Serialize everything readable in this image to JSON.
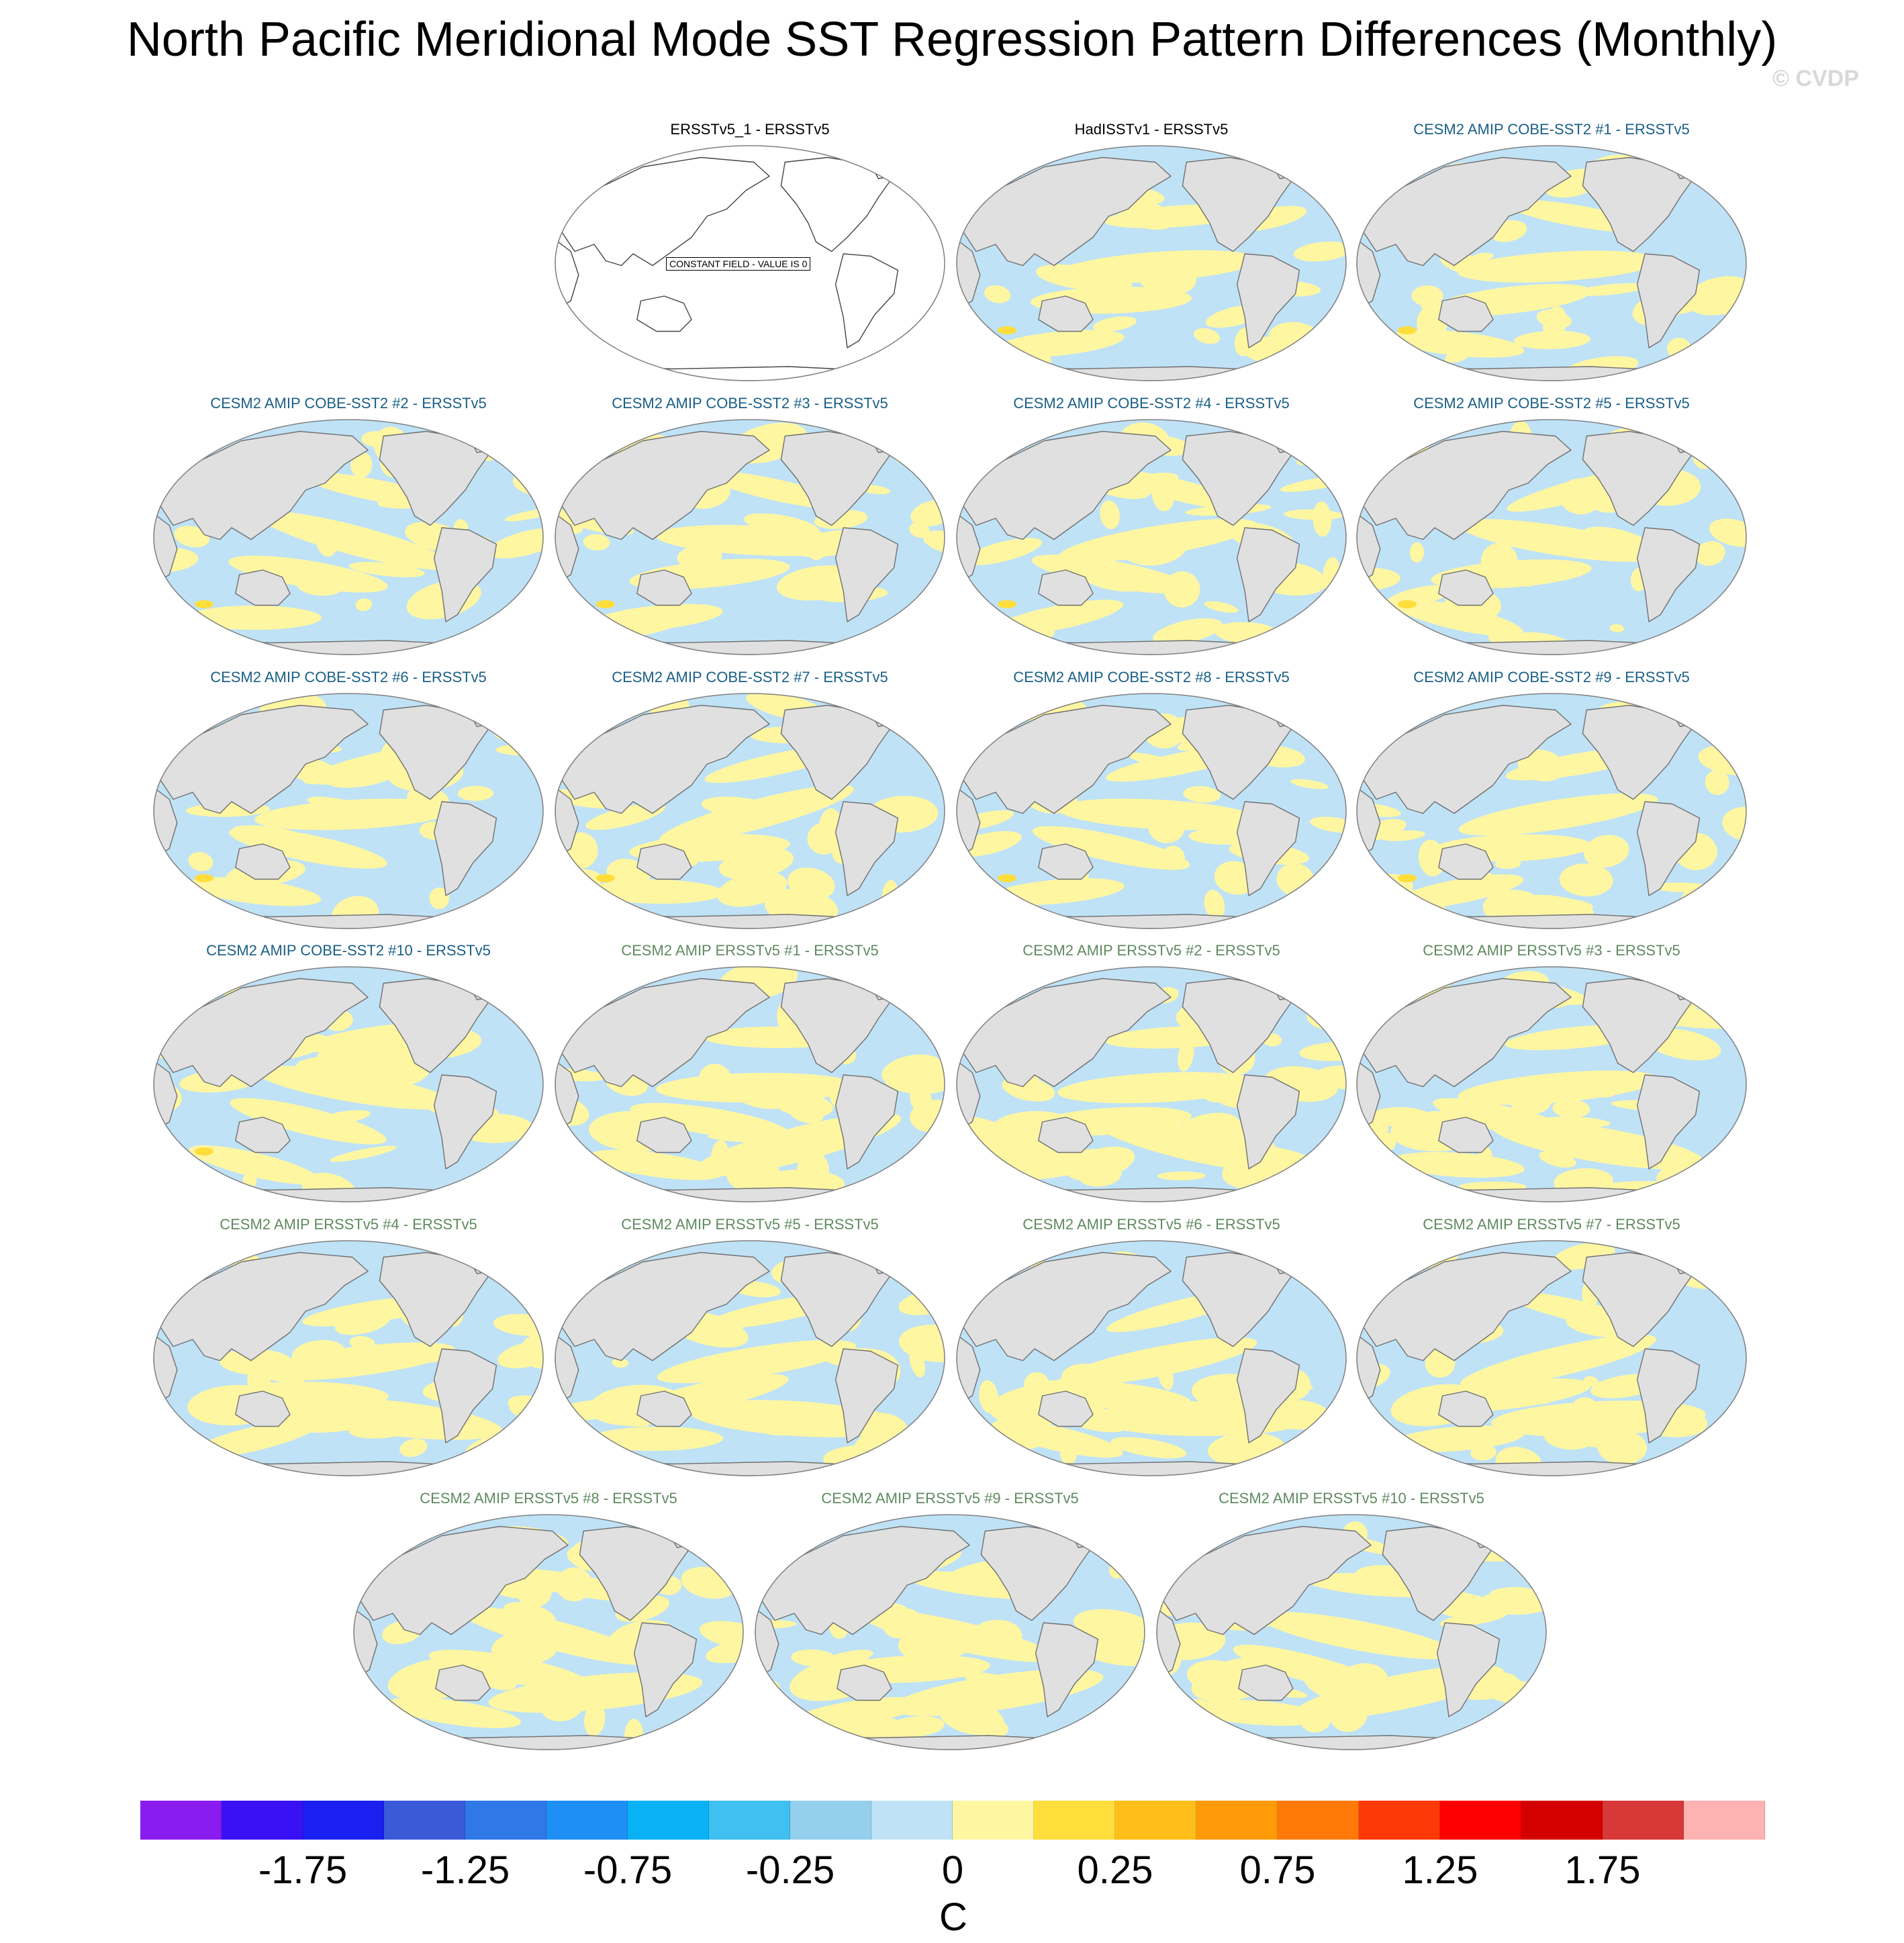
{
  "title": "North Pacific Meridional Mode SST Regression Pattern Differences (Monthly)",
  "watermark": "© CVDP",
  "panels": [
    {
      "label": "ERSSTv5_1 - ERSSTv5",
      "color": "#000000",
      "kind": "constant",
      "note": "CONSTANT FIELD - VALUE IS 0"
    },
    {
      "label": "HadISSTv1 - ERSSTv5",
      "color": "#000000",
      "kind": "hadisst"
    },
    {
      "label": "CESM2 AMIP COBE-SST2 #1 - ERSSTv5",
      "color": "#1a5f86",
      "kind": "cobe"
    },
    {
      "label": "CESM2 AMIP COBE-SST2 #2 - ERSSTv5",
      "color": "#1a5f86",
      "kind": "cobe"
    },
    {
      "label": "CESM2 AMIP COBE-SST2 #3 - ERSSTv5",
      "color": "#1a5f86",
      "kind": "cobe"
    },
    {
      "label": "CESM2 AMIP COBE-SST2 #4 - ERSSTv5",
      "color": "#1a5f86",
      "kind": "cobe"
    },
    {
      "label": "CESM2 AMIP COBE-SST2 #5 - ERSSTv5",
      "color": "#1a5f86",
      "kind": "cobe"
    },
    {
      "label": "CESM2 AMIP COBE-SST2 #6 - ERSSTv5",
      "color": "#1a5f86",
      "kind": "cobe"
    },
    {
      "label": "CESM2 AMIP COBE-SST2 #7 - ERSSTv5",
      "color": "#1a5f86",
      "kind": "cobe"
    },
    {
      "label": "CESM2 AMIP COBE-SST2 #8 - ERSSTv5",
      "color": "#1a5f86",
      "kind": "cobe"
    },
    {
      "label": "CESM2 AMIP COBE-SST2 #9 - ERSSTv5",
      "color": "#1a5f86",
      "kind": "cobe"
    },
    {
      "label": "CESM2 AMIP COBE-SST2 #10 - ERSSTv5",
      "color": "#1a5f86",
      "kind": "cobe"
    },
    {
      "label": "CESM2 AMIP ERSSTv5 #1 - ERSSTv5",
      "color": "#5f8a5f",
      "kind": "ersst"
    },
    {
      "label": "CESM2 AMIP ERSSTv5 #2 - ERSSTv5",
      "color": "#5f8a5f",
      "kind": "ersst"
    },
    {
      "label": "CESM2 AMIP ERSSTv5 #3 - ERSSTv5",
      "color": "#5f8a5f",
      "kind": "ersst"
    },
    {
      "label": "CESM2 AMIP ERSSTv5 #4 - ERSSTv5",
      "color": "#5f8a5f",
      "kind": "ersst"
    },
    {
      "label": "CESM2 AMIP ERSSTv5 #5 - ERSSTv5",
      "color": "#5f8a5f",
      "kind": "ersst"
    },
    {
      "label": "CESM2 AMIP ERSSTv5 #6 - ERSSTv5",
      "color": "#5f8a5f",
      "kind": "ersst"
    },
    {
      "label": "CESM2 AMIP ERSSTv5 #7 - ERSSTv5",
      "color": "#5f8a5f",
      "kind": "ersst"
    },
    {
      "label": "CESM2 AMIP ERSSTv5 #8 - ERSSTv5",
      "color": "#5f8a5f",
      "kind": "ersst"
    },
    {
      "label": "CESM2 AMIP ERSSTv5 #9 - ERSSTv5",
      "color": "#5f8a5f",
      "kind": "ersst"
    },
    {
      "label": "CESM2 AMIP ERSSTv5 #10 - ERSSTv5",
      "color": "#5f8a5f",
      "kind": "ersst"
    }
  ],
  "colorbar": {
    "colors": [
      "#8a1cf0",
      "#3a10f5",
      "#1a20f0",
      "#3a5ad8",
      "#2e78e8",
      "#1e90f5",
      "#08b2f5",
      "#40c0f0",
      "#94d0ee",
      "#bfe2f6",
      "#fff6a2",
      "#ffdd3a",
      "#ffbe1a",
      "#ff9a08",
      "#ff7a08",
      "#ff3808",
      "#ff0000",
      "#d40000",
      "#d83838",
      "#ffb2b2"
    ],
    "ticks": [
      "-1.75",
      "-1.25",
      "-0.75",
      "-0.25",
      "0",
      "0.25",
      "0.75",
      "1.25",
      "1.75"
    ],
    "units": "C"
  },
  "map_colors": {
    "ocean_negative": "#bfe2f6",
    "ocean_positive": "#fff6a2",
    "land": "#e0e0e0",
    "coast": "#707070"
  }
}
